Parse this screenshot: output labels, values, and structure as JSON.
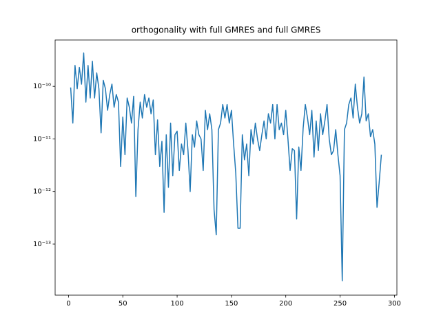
{
  "chart_data": {
    "type": "line",
    "title": "orthogonality with full GMRES and full GMRES",
    "x": [
      2,
      4,
      6,
      8,
      10,
      12,
      14,
      16,
      18,
      20,
      22,
      24,
      26,
      28,
      30,
      32,
      34,
      36,
      38,
      40,
      42,
      44,
      46,
      48,
      50,
      52,
      54,
      56,
      58,
      60,
      62,
      64,
      66,
      68,
      70,
      72,
      74,
      76,
      78,
      80,
      82,
      84,
      86,
      88,
      90,
      92,
      94,
      96,
      98,
      100,
      102,
      104,
      106,
      108,
      110,
      112,
      114,
      116,
      118,
      120,
      122,
      124,
      126,
      128,
      130,
      132,
      134,
      136,
      138,
      140,
      142,
      144,
      146,
      148,
      150,
      152,
      154,
      156,
      158,
      160,
      162,
      164,
      166,
      168,
      170,
      172,
      174,
      176,
      178,
      180,
      182,
      184,
      186,
      188,
      190,
      192,
      194,
      196,
      198,
      200,
      202,
      204,
      206,
      208,
      210,
      212,
      214,
      216,
      218,
      220,
      222,
      224,
      226,
      228,
      230,
      232,
      234,
      236,
      238,
      240,
      242,
      244,
      246,
      248,
      250,
      252,
      254,
      256,
      258,
      260,
      262,
      264,
      266,
      268,
      270,
      272,
      274,
      276,
      278,
      280,
      282,
      284,
      286,
      288
    ],
    "values": [
      9.5e-11,
      2e-11,
      2.5e-10,
      9e-11,
      2.3e-10,
      1.1e-10,
      4.3e-10,
      5e-11,
      2.5e-10,
      6e-11,
      3e-10,
      6e-11,
      1.8e-10,
      9e-11,
      1.3e-11,
      1.3e-10,
      9e-11,
      3.5e-11,
      7e-11,
      1.1e-10,
      4e-11,
      7e-11,
      5e-11,
      3e-12,
      2.6e-11,
      5e-12,
      6e-11,
      4e-11,
      2e-11,
      6.5e-11,
      8e-13,
      1.5e-11,
      5e-11,
      2.5e-11,
      7e-11,
      4e-11,
      6e-11,
      3e-11,
      5.5e-11,
      5e-12,
      2.3e-11,
      3e-12,
      9e-12,
      4e-13,
      1.2e-11,
      1.2e-12,
      2e-11,
      2e-12,
      1.2e-11,
      1.4e-11,
      2.5e-12,
      8e-12,
      5e-12,
      2e-11,
      6e-12,
      1e-12,
      1.2e-11,
      7e-12,
      2.2e-11,
      1.2e-11,
      1e-11,
      2.5e-12,
      3.5e-11,
      1.5e-11,
      3e-11,
      1.5e-11,
      4.5e-13,
      1.5e-13,
      1.5e-11,
      2e-11,
      4.5e-11,
      2.5e-11,
      4.5e-11,
      2e-11,
      3.5e-11,
      8e-12,
      2.2e-12,
      2e-13,
      2e-13,
      1.2e-11,
      4e-12,
      8e-12,
      2e-12,
      1.5e-11,
      8e-12,
      2e-11,
      1e-11,
      6e-12,
      1.2e-11,
      2.2e-11,
      1e-11,
      3e-11,
      2e-11,
      4.5e-11,
      1e-11,
      4.5e-11,
      1.5e-11,
      2e-11,
      1.2e-11,
      3.5e-11,
      1e-11,
      2.5e-12,
      6.5e-12,
      6e-12,
      3e-13,
      7e-12,
      2.5e-12,
      1.6e-11,
      4.5e-11,
      2.5e-11,
      1.2e-11,
      3.5e-11,
      4.5e-12,
      2.2e-11,
      6e-12,
      3e-11,
      1.2e-11,
      2.2e-11,
      4.5e-11,
      1e-11,
      5e-12,
      6e-12,
      1.5e-11,
      5e-12,
      2e-12,
      2e-14,
      1.5e-11,
      2e-11,
      4.5e-11,
      6e-11,
      2.5e-11,
      1.1e-10,
      4e-11,
      2e-11,
      3e-11,
      1.5e-10,
      2.2e-11,
      3e-11,
      1.1e-11,
      1.5e-11,
      8e-12,
      5e-13,
      1.5e-12,
      5e-12
    ],
    "color": "#1f77b4",
    "yscale": "log",
    "xlim": [
      -12.3,
      302.3
    ],
    "xticks": [
      0,
      50,
      100,
      150,
      200,
      250,
      300
    ],
    "ylim": [
      1.07e-14,
      7.6e-10
    ],
    "yticks": [
      {
        "value": 1e-13,
        "label": "10⁻¹³"
      },
      {
        "value": 1e-12,
        "label": "10⁻¹²"
      },
      {
        "value": 1e-11,
        "label": "10⁻¹¹"
      },
      {
        "value": 1e-10,
        "label": "10⁻¹⁰"
      }
    ]
  }
}
